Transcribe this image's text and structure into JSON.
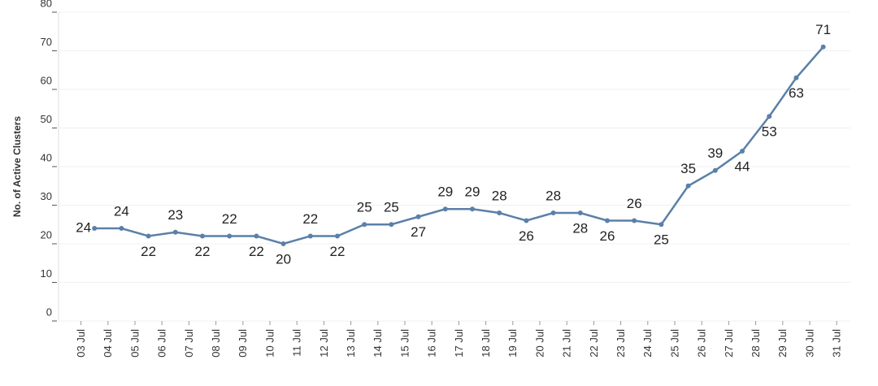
{
  "chart_data": {
    "type": "line",
    "y_label": "No. of Active Clusters",
    "categories": [
      "03 Jul",
      "04 Jul",
      "05 Jul",
      "06 Jul",
      "07 Jul",
      "08 Jul",
      "09 Jul",
      "10 Jul",
      "11 Jul",
      "12 Jul",
      "13 Jul",
      "14 Jul",
      "15 Jul",
      "16 Jul",
      "17 Jul",
      "18 Jul",
      "19 Jul",
      "20 Jul",
      "21 Jul",
      "22 Jul",
      "23 Jul",
      "24 Jul",
      "25 Jul",
      "26 Jul",
      "27 Jul",
      "28 Jul",
      "29 Jul",
      "30 Jul",
      "31 Jul"
    ],
    "values": [
      24,
      24,
      22,
      23,
      22,
      22,
      22,
      20,
      22,
      22,
      25,
      25,
      27,
      29,
      29,
      28,
      26,
      28,
      28,
      26,
      26,
      25,
      35,
      39,
      44,
      53,
      63,
      71,
      null
    ],
    "color": "#5b80a8",
    "ylim": [
      0,
      80
    ],
    "yticks": [
      0,
      10,
      20,
      30,
      40,
      50,
      60,
      70,
      80
    ],
    "grid": true
  }
}
